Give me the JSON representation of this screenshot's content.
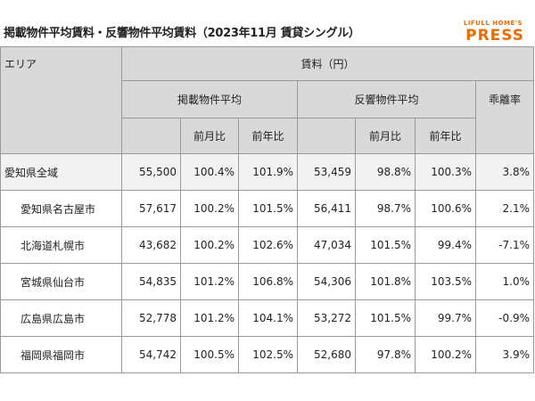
{
  "header": {
    "title": "掲載物件平均賃料・反響物件平均賃料（2023年11月 賃貸シングル）",
    "logo_top": "LIFULL HOME'S",
    "logo_bottom": "PRESS"
  },
  "table": {
    "area_label": "エリア",
    "rent_label": "賃料（円）",
    "listed_label": "掲載物件平均",
    "response_label": "反響物件平均",
    "gap_label": "乖離率",
    "listed_subheaders": [
      "前月比",
      "前年比"
    ],
    "response_subheaders": [
      "前月比",
      "前年比"
    ],
    "rows": [
      [
        "愛知県全域",
        "55,500",
        "100.4%",
        "101.9%",
        "53,459",
        "98.8%",
        "100.3%",
        "3.8%"
      ],
      [
        "愛知県名古屋市",
        "57,617",
        "100.2%",
        "101.5%",
        "56,411",
        "98.7%",
        "100.6%",
        "2.1%"
      ],
      [
        "北海道札幌市",
        "43,682",
        "100.2%",
        "102.6%",
        "47,034",
        "101.5%",
        "99.4%",
        "-7.1%"
      ],
      [
        "宮城県仙台市",
        "54,835",
        "101.2%",
        "106.8%",
        "54,306",
        "101.8%",
        "103.5%",
        "1.0%"
      ],
      [
        "広島県広島市",
        "52,778",
        "101.2%",
        "104.1%",
        "53,272",
        "101.5%",
        "99.7%",
        "-0.9%"
      ],
      [
        "福岡県福岡市",
        "54,742",
        "100.5%",
        "102.5%",
        "52,680",
        "97.8%",
        "100.2%",
        "3.9%"
      ]
    ]
  }
}
